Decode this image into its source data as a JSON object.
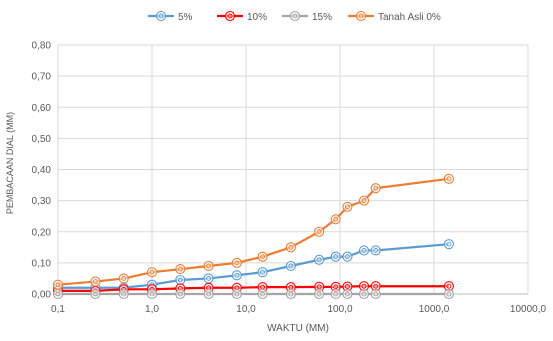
{
  "chart_data": {
    "type": "line",
    "title": "",
    "xlabel": "WAKTU (MM)",
    "ylabel": "PEMBACAAN DIAL (MM)",
    "xscale": "log",
    "xlim": [
      0.1,
      10000
    ],
    "ylim": [
      0,
      0.8
    ],
    "x_tick_labels": [
      "0,1",
      "1,0",
      "10,0",
      "100,0",
      "1000,0",
      "10000,0"
    ],
    "y_tick_labels": [
      "0,00",
      "0,10",
      "0,20",
      "0,30",
      "0,40",
      "0,50",
      "0,60",
      "0,70",
      "0,80"
    ],
    "grid": true,
    "legend_position": "top",
    "series": [
      {
        "name": "5%",
        "color": "#5b9bd5",
        "points": [
          [
            0.1,
            0.02
          ],
          [
            0.25,
            0.02
          ],
          [
            0.5,
            0.02
          ],
          [
            1,
            0.03
          ],
          [
            2,
            0.045
          ],
          [
            4,
            0.05
          ],
          [
            8,
            0.06
          ],
          [
            15,
            0.07
          ],
          [
            30,
            0.09
          ],
          [
            60,
            0.11
          ],
          [
            90,
            0.12
          ],
          [
            120,
            0.12
          ],
          [
            180,
            0.14
          ],
          [
            240,
            0.14
          ],
          [
            1440,
            0.16
          ]
        ]
      },
      {
        "name": "10%",
        "color": "#ff0000",
        "points": [
          [
            0.1,
            0.01
          ],
          [
            0.25,
            0.01
          ],
          [
            0.5,
            0.015
          ],
          [
            1,
            0.015
          ],
          [
            2,
            0.018
          ],
          [
            4,
            0.02
          ],
          [
            8,
            0.02
          ],
          [
            15,
            0.022
          ],
          [
            30,
            0.022
          ],
          [
            60,
            0.023
          ],
          [
            90,
            0.023
          ],
          [
            120,
            0.024
          ],
          [
            180,
            0.025
          ],
          [
            240,
            0.025
          ],
          [
            1440,
            0.025
          ]
        ]
      },
      {
        "name": "15%",
        "color": "#a5a5a5",
        "points": [
          [
            0.1,
            0.0
          ],
          [
            0.25,
            0.0
          ],
          [
            0.5,
            0.0
          ],
          [
            1,
            0.0
          ],
          [
            2,
            0.0
          ],
          [
            4,
            0.0
          ],
          [
            8,
            0.0
          ],
          [
            15,
            0.0
          ],
          [
            30,
            0.0
          ],
          [
            60,
            0.0
          ],
          [
            90,
            0.0
          ],
          [
            120,
            0.0
          ],
          [
            180,
            0.0
          ],
          [
            240,
            0.0
          ],
          [
            1440,
            0.0
          ]
        ]
      },
      {
        "name": "Tanah Asli 0%",
        "color": "#ed7d31",
        "points": [
          [
            0.1,
            0.03
          ],
          [
            0.25,
            0.04
          ],
          [
            0.5,
            0.05
          ],
          [
            1,
            0.07
          ],
          [
            2,
            0.08
          ],
          [
            4,
            0.09
          ],
          [
            8,
            0.1
          ],
          [
            15,
            0.12
          ],
          [
            30,
            0.15
          ],
          [
            60,
            0.2
          ],
          [
            90,
            0.24
          ],
          [
            120,
            0.28
          ],
          [
            180,
            0.3
          ],
          [
            240,
            0.34
          ],
          [
            1440,
            0.37
          ]
        ]
      }
    ]
  }
}
